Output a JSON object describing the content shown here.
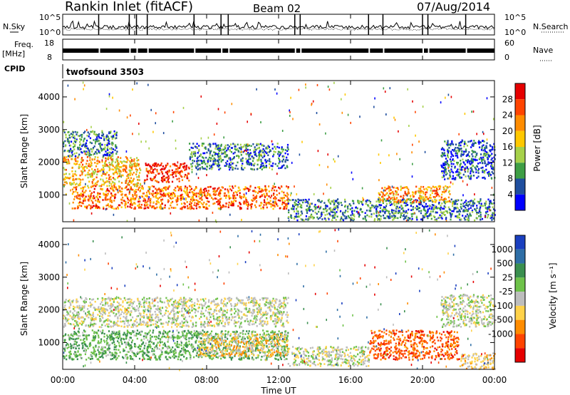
{
  "header": {
    "station": "Rankin Inlet (fitACF)",
    "beam": "Beam 02",
    "date": "07/Aug/2014"
  },
  "strips": {
    "nsky_label": "N.Sky",
    "nsearch_label": "N.Search",
    "freq_label_1": "Freq.",
    "freq_label_2": "[MHz]",
    "nave_label": "Nave",
    "cpid_label": "CPID",
    "cpid_value": "twofsound 3503",
    "noise_ticks_left": [
      "10^5",
      "10^0"
    ],
    "noise_ticks_right": [
      "10^5",
      "10^0"
    ],
    "freq_ticks_left": [
      "18",
      "8"
    ],
    "nave_ticks_right": [
      "60",
      "0"
    ]
  },
  "power_colorbar": {
    "label": "Power [dB]",
    "ticks": [
      "28",
      "24",
      "20",
      "16",
      "12",
      "8",
      "4"
    ],
    "colors": [
      "#e60000",
      "#ff4400",
      "#ff8c00",
      "#ffc800",
      "#a6d14a",
      "#3e9e45",
      "#1f4e9e",
      "#0000ff"
    ]
  },
  "velocity_colorbar": {
    "label": "Velocity [m s⁻¹]",
    "ticks": [
      "1000",
      "500",
      "25",
      "-25",
      "-100",
      "-500",
      "-1000"
    ],
    "colors": [
      "#1a3fbf",
      "#2e6ea6",
      "#3a8f4f",
      "#6ec24a",
      "#bdbdbd",
      "#ffd24a",
      "#ff8c00",
      "#ff4400",
      "#e60000"
    ]
  },
  "chart_data": [
    {
      "type": "heatmap",
      "title": "Power",
      "ylabel": "Slant Range [km]",
      "xlabel": "",
      "ylim": [
        180,
        4500
      ],
      "yticks": [
        "1000",
        "2000",
        "3000",
        "4000"
      ],
      "xlim": [
        "00:00",
        "24:00"
      ],
      "xticks": [
        "00:00",
        "04:00",
        "08:00",
        "12:00",
        "16:00",
        "20:00",
        "00:00"
      ],
      "scale": {
        "label": "Power [dB]",
        "range": [
          0,
          30
        ]
      },
      "regions": [
        {
          "t": [
            0,
            4.3
          ],
          "range": [
            1300,
            2200
          ],
          "value": 18
        },
        {
          "t": [
            0,
            3.0
          ],
          "range": [
            2200,
            3000
          ],
          "value": 8
        },
        {
          "t": [
            0.5,
            12.5
          ],
          "range": [
            600,
            1300
          ],
          "value": 22
        },
        {
          "t": [
            4.5,
            7.0
          ],
          "range": [
            1400,
            2000
          ],
          "value": 26
        },
        {
          "t": [
            7.0,
            12.5
          ],
          "range": [
            1800,
            2600
          ],
          "value": 8
        },
        {
          "t": [
            12.5,
            24
          ],
          "range": [
            250,
            900
          ],
          "value": 8
        },
        {
          "t": [
            17.5,
            21.5
          ],
          "range": [
            800,
            1300
          ],
          "value": 20
        },
        {
          "t": [
            21.0,
            24
          ],
          "range": [
            1500,
            2700
          ],
          "value": 6
        }
      ]
    },
    {
      "type": "heatmap",
      "title": "Velocity",
      "ylabel": "Slant Range [km]",
      "xlabel": "Time UT",
      "ylim": [
        180,
        4500
      ],
      "yticks": [
        "1000",
        "2000",
        "3000",
        "4000"
      ],
      "xlim": [
        "00:00",
        "24:00"
      ],
      "xticks": [
        "00:00",
        "04:00",
        "08:00",
        "12:00",
        "16:00",
        "20:00",
        "00:00"
      ],
      "scale": {
        "label": "Velocity [m s-1]",
        "range": [
          -1000,
          1000
        ]
      },
      "regions": [
        {
          "t": [
            0,
            12.5
          ],
          "range": [
            1500,
            2400
          ],
          "value": 0
        },
        {
          "t": [
            0,
            12.5
          ],
          "range": [
            500,
            1400
          ],
          "value": 300
        },
        {
          "t": [
            7.5,
            12.5
          ],
          "range": [
            600,
            1300
          ],
          "value": -200
        },
        {
          "t": [
            12.5,
            17
          ],
          "range": [
            300,
            900
          ],
          "value": 0
        },
        {
          "t": [
            17,
            22
          ],
          "range": [
            500,
            1400
          ],
          "value": -600
        },
        {
          "t": [
            22,
            24
          ],
          "range": [
            200,
            700
          ],
          "value": -200
        },
        {
          "t": [
            21,
            24
          ],
          "range": [
            1500,
            2500
          ],
          "value": 40
        }
      ]
    }
  ]
}
